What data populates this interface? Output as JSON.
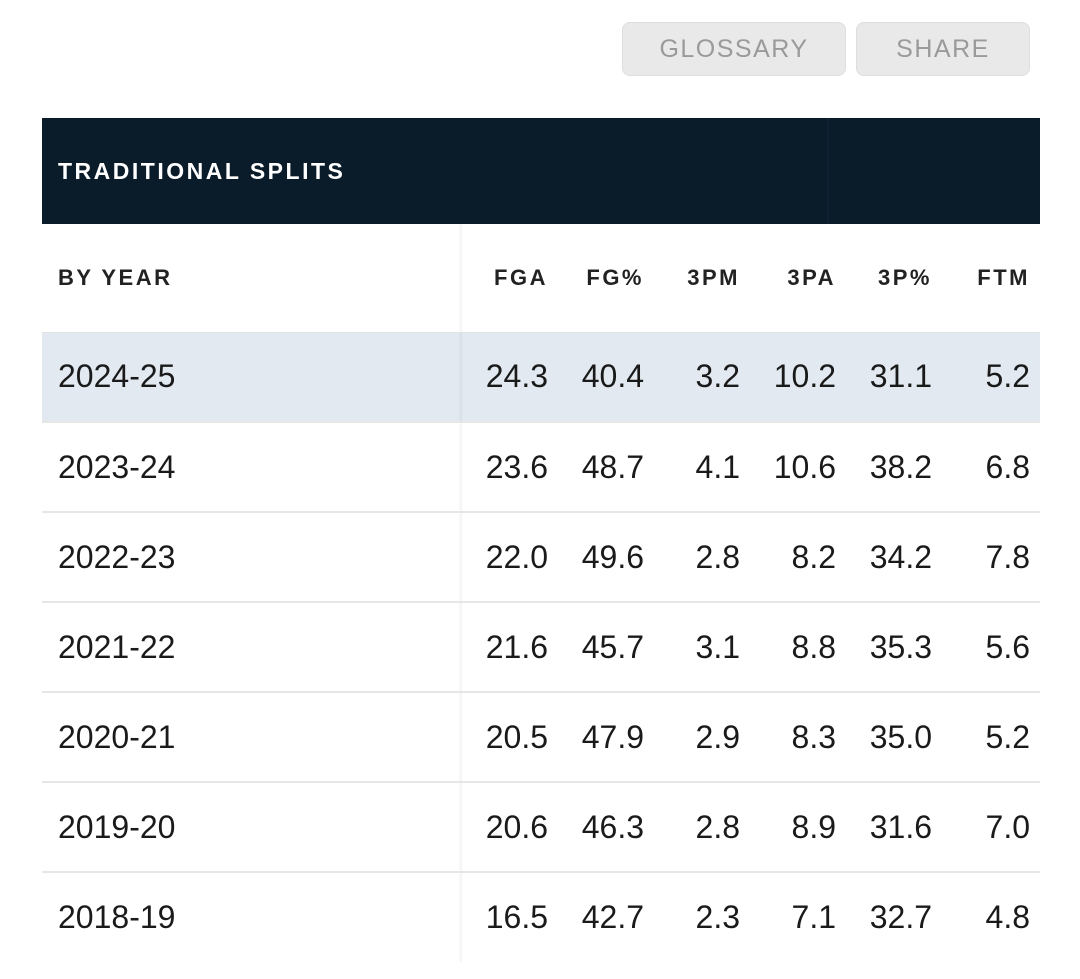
{
  "toolbar": {
    "glossary_label": "GLOSSARY",
    "share_label": "SHARE"
  },
  "panel": {
    "title": "TRADITIONAL SPLITS"
  },
  "table": {
    "year_header": "BY YEAR",
    "columns": [
      "FGA",
      "FG%",
      "3PM",
      "3PA",
      "3P%",
      "FTM"
    ],
    "rows": [
      {
        "year": "2024-25",
        "values": [
          "24.3",
          "40.4",
          "3.2",
          "10.2",
          "31.1",
          "5.2"
        ],
        "highlighted": true
      },
      {
        "year": "2023-24",
        "values": [
          "23.6",
          "48.7",
          "4.1",
          "10.6",
          "38.2",
          "6.8"
        ]
      },
      {
        "year": "2022-23",
        "values": [
          "22.0",
          "49.6",
          "2.8",
          "8.2",
          "34.2",
          "7.8"
        ]
      },
      {
        "year": "2021-22",
        "values": [
          "21.6",
          "45.7",
          "3.1",
          "8.8",
          "35.3",
          "5.6"
        ]
      },
      {
        "year": "2020-21",
        "values": [
          "20.5",
          "47.9",
          "2.9",
          "8.3",
          "35.0",
          "5.2"
        ]
      },
      {
        "year": "2019-20",
        "values": [
          "20.6",
          "46.3",
          "2.8",
          "8.9",
          "31.6",
          "7.0"
        ]
      },
      {
        "year": "2018-19",
        "values": [
          "16.5",
          "42.7",
          "2.3",
          "7.1",
          "32.7",
          "4.8"
        ]
      }
    ]
  },
  "colors": {
    "header_bg": "#0a1b2a",
    "highlight_row": "#e2e9f1",
    "button_bg": "#e9e9e9",
    "button_text": "#9a9a9a"
  }
}
